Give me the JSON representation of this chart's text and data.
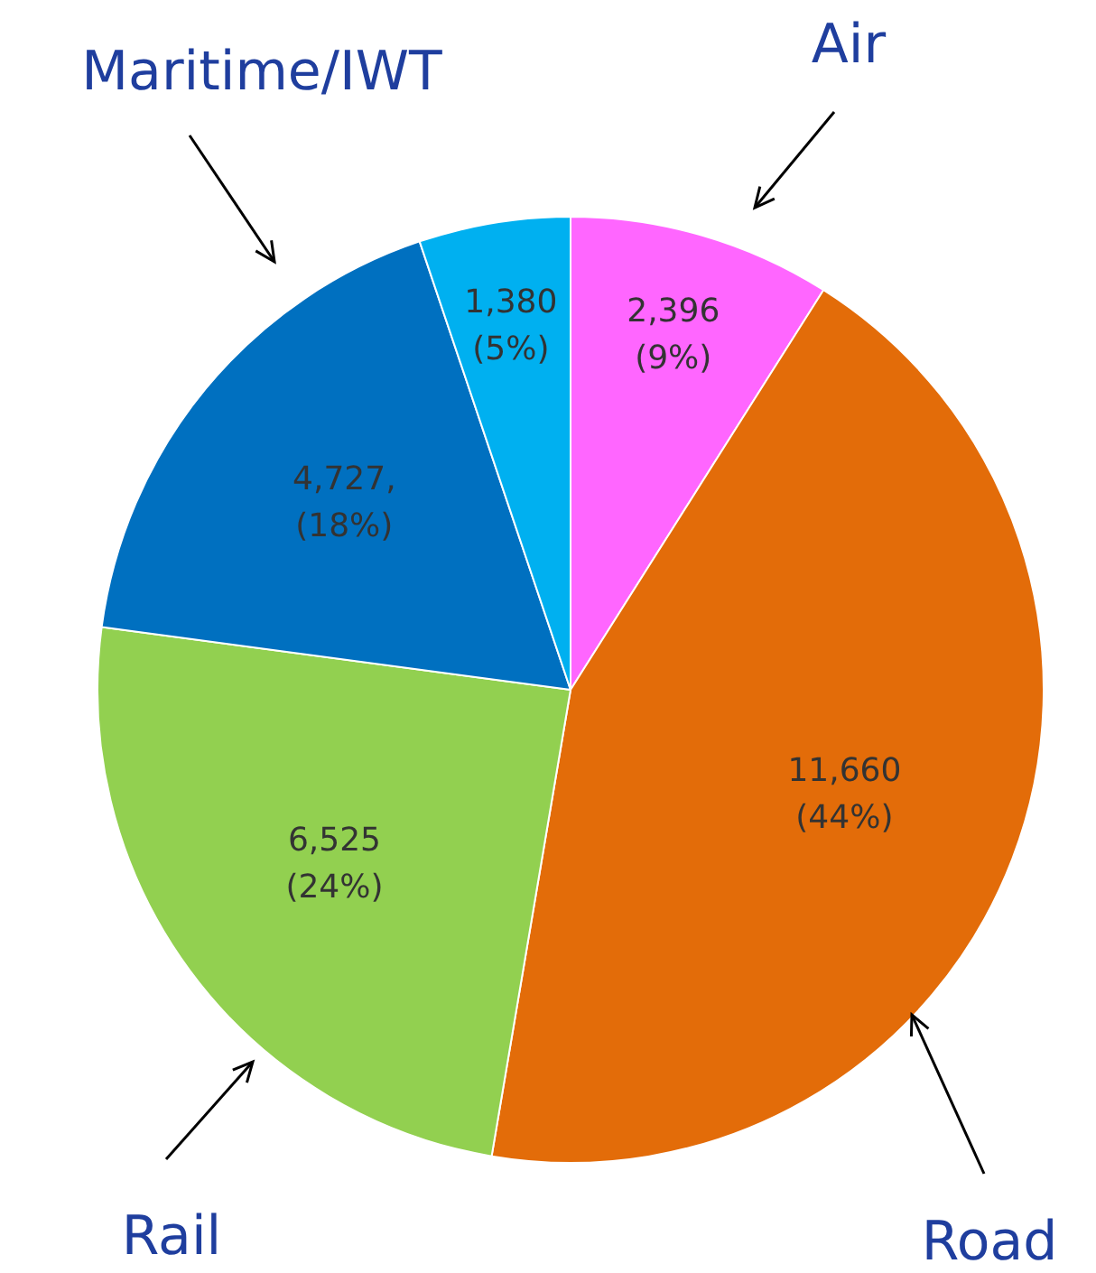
{
  "chart_data": {
    "type": "pie",
    "categories": [
      "Air",
      "Road",
      "Rail",
      "Maritime/IWT",
      null
    ],
    "values": [
      2396,
      11660,
      6525,
      4727,
      1380
    ],
    "colors": [
      "#ff66ff",
      "#e36c09",
      "#92d050",
      "#0070c0",
      "#00b0f0"
    ],
    "value_labels": [
      "2,396\n(9%)",
      "11,660\n(44%)",
      "6,525\n(24%)",
      "4,727,\n(18%)",
      "1,380\n(5%)"
    ]
  }
}
